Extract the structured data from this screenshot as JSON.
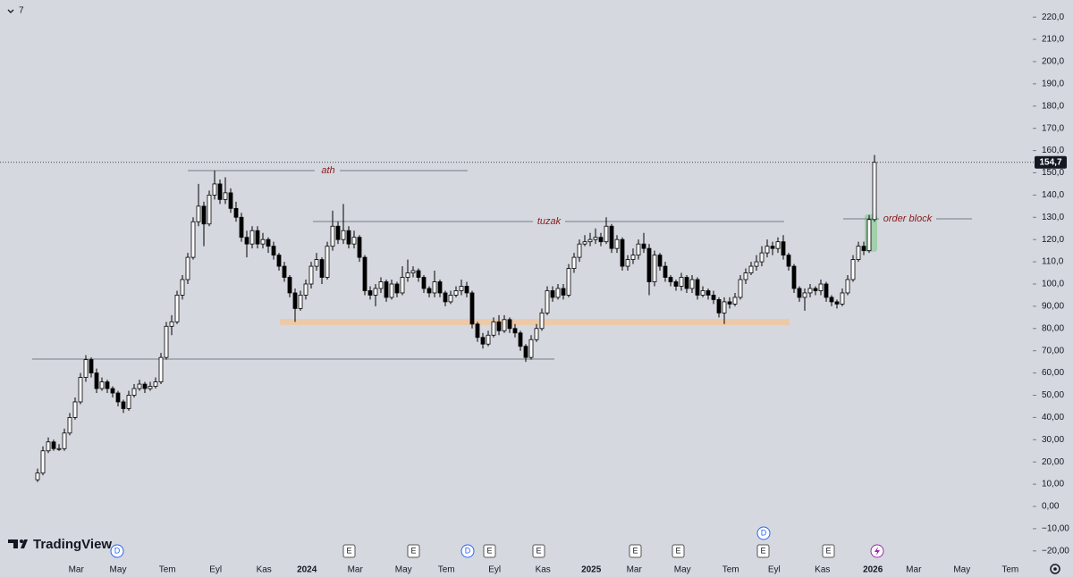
{
  "chart_data": {
    "type": "candlestick",
    "header": {
      "interval": "7"
    },
    "brand": "TradingView",
    "up_color": "#ffffff",
    "down_color": "#000000",
    "wick_color": "#000000",
    "ylim": [
      -25.3,
      227.7
    ],
    "yticks": [
      {
        "value": -20,
        "label": "−20,00"
      },
      {
        "value": -10,
        "label": "−10,00"
      },
      {
        "value": 0,
        "label": "0,00"
      },
      {
        "value": 10,
        "label": "10,00"
      },
      {
        "value": 20,
        "label": "20,00"
      },
      {
        "value": 30,
        "label": "30,00"
      },
      {
        "value": 40,
        "label": "40,00"
      },
      {
        "value": 50,
        "label": "50,00"
      },
      {
        "value": 60,
        "label": "60,00"
      },
      {
        "value": 70,
        "label": "70,00"
      },
      {
        "value": 80,
        "label": "80,00"
      },
      {
        "value": 90,
        "label": "90,00"
      },
      {
        "value": 100,
        "label": "100,0"
      },
      {
        "value": 110,
        "label": "110,0"
      },
      {
        "value": 120,
        "label": "120,0"
      },
      {
        "value": 130,
        "label": "130,0"
      },
      {
        "value": 140,
        "label": "140,0"
      },
      {
        "value": 150,
        "label": "150,0"
      },
      {
        "value": 160,
        "label": "160,0"
      },
      {
        "value": 170,
        "label": "170,0"
      },
      {
        "value": 180,
        "label": "180,0"
      },
      {
        "value": 190,
        "label": "190,0"
      },
      {
        "value": 200,
        "label": "200,0"
      },
      {
        "value": 210,
        "label": "210,0"
      },
      {
        "value": 220,
        "label": "220,0"
      }
    ],
    "xticks": [
      {
        "value": 7.2,
        "label": "Mar"
      },
      {
        "value": 15,
        "label": "May"
      },
      {
        "value": 24.2,
        "label": "Tem"
      },
      {
        "value": 33.2,
        "label": "Eyl"
      },
      {
        "value": 42.2,
        "label": "Kas"
      },
      {
        "value": 50.2,
        "label": "2024"
      },
      {
        "value": 59.2,
        "label": "Mar"
      },
      {
        "value": 68.2,
        "label": "May"
      },
      {
        "value": 76.2,
        "label": "Tem"
      },
      {
        "value": 85.2,
        "label": "Eyl"
      },
      {
        "value": 94.2,
        "label": "Kas"
      },
      {
        "value": 103.2,
        "label": "2025"
      },
      {
        "value": 111.2,
        "label": "Mar"
      },
      {
        "value": 120.2,
        "label": "May"
      },
      {
        "value": 129.2,
        "label": "Tem"
      },
      {
        "value": 137.3,
        "label": "Eyl"
      },
      {
        "value": 146.3,
        "label": "Kas"
      },
      {
        "value": 155.7,
        "label": "2026"
      },
      {
        "value": 163.3,
        "label": "Mar"
      },
      {
        "value": 172.3,
        "label": "May"
      },
      {
        "value": 181.3,
        "label": "Tem"
      }
    ],
    "last_price_label": "154,7",
    "annotations": {
      "ath": "ath",
      "tuzak": "tuzak",
      "order_block": "order block"
    },
    "events": [
      "D",
      "E",
      "E",
      "D",
      "E",
      "E",
      "E",
      "E",
      "E",
      "D",
      "E"
    ],
    "candles": [
      [
        12,
        17,
        11,
        15
      ],
      [
        15,
        27,
        14,
        25
      ],
      [
        25,
        31,
        24,
        29
      ],
      [
        29,
        30,
        25,
        26
      ],
      [
        26,
        28,
        25,
        26
      ],
      [
        26,
        35,
        25,
        33
      ],
      [
        33,
        42,
        32,
        40
      ],
      [
        40,
        49,
        39,
        47
      ],
      [
        47,
        60,
        46,
        58
      ],
      [
        58,
        68,
        56,
        66
      ],
      [
        66,
        67,
        58,
        60
      ],
      [
        60,
        62,
        51,
        53
      ],
      [
        53,
        58,
        52,
        56
      ],
      [
        56,
        57,
        51,
        53
      ],
      [
        53,
        54,
        49,
        51
      ],
      [
        51,
        52,
        45,
        47
      ],
      [
        47,
        48,
        42,
        44
      ],
      [
        44,
        52,
        43,
        50
      ],
      [
        50,
        55,
        49,
        53
      ],
      [
        53,
        57,
        52,
        55
      ],
      [
        55,
        56,
        51,
        53
      ],
      [
        53,
        56,
        52,
        54
      ],
      [
        54,
        58,
        53,
        56
      ],
      [
        56,
        69,
        55,
        67
      ],
      [
        67,
        83,
        66,
        81
      ],
      [
        81,
        86,
        77,
        83
      ],
      [
        83,
        97,
        82,
        95
      ],
      [
        95,
        104,
        93,
        102
      ],
      [
        102,
        114,
        100,
        112
      ],
      [
        112,
        130,
        111,
        128
      ],
      [
        128,
        145,
        126,
        135
      ],
      [
        135,
        137,
        117,
        127
      ],
      [
        127,
        142,
        126,
        140
      ],
      [
        140,
        151,
        138,
        145
      ],
      [
        145,
        147,
        136,
        138
      ],
      [
        138,
        148,
        136,
        141
      ],
      [
        141,
        143,
        132,
        134
      ],
      [
        134,
        137,
        128,
        130
      ],
      [
        130,
        132,
        119,
        121
      ],
      [
        121,
        124,
        112,
        118
      ],
      [
        118,
        126,
        116,
        124
      ],
      [
        124,
        126,
        116,
        118
      ],
      [
        118,
        123,
        116,
        120
      ],
      [
        120,
        121,
        114,
        117
      ],
      [
        117,
        119,
        111,
        113
      ],
      [
        113,
        114,
        106,
        108
      ],
      [
        108,
        110,
        101,
        103
      ],
      [
        103,
        104,
        94,
        96
      ],
      [
        96,
        98,
        83,
        89
      ],
      [
        89,
        97,
        88,
        95
      ],
      [
        95,
        102,
        93,
        100
      ],
      [
        100,
        110,
        98,
        108
      ],
      [
        108,
        114,
        106,
        111
      ],
      [
        111,
        112,
        100,
        103
      ],
      [
        103,
        119,
        102,
        117
      ],
      [
        117,
        133,
        115,
        126
      ],
      [
        126,
        128,
        118,
        120
      ],
      [
        120,
        136,
        118,
        124
      ],
      [
        124,
        126,
        116,
        118
      ],
      [
        118,
        124,
        116,
        121
      ],
      [
        121,
        122,
        110,
        112
      ],
      [
        112,
        113,
        95,
        97
      ],
      [
        97,
        99,
        93,
        95
      ],
      [
        95,
        100,
        90,
        98
      ],
      [
        98,
        103,
        96,
        101
      ],
      [
        101,
        102,
        92,
        94
      ],
      [
        94,
        102,
        93,
        100
      ],
      [
        100,
        101,
        94,
        96
      ],
      [
        96,
        108,
        95,
        103
      ],
      [
        103,
        111,
        101,
        105
      ],
      [
        105,
        108,
        103,
        106
      ],
      [
        106,
        107,
        101,
        103
      ],
      [
        103,
        104,
        96,
        98
      ],
      [
        98,
        99,
        94,
        96
      ],
      [
        96,
        106,
        94,
        101
      ],
      [
        101,
        102,
        94,
        96
      ],
      [
        96,
        97,
        90,
        92
      ],
      [
        92,
        97,
        91,
        95
      ],
      [
        95,
        99,
        94,
        97
      ],
      [
        97,
        102,
        95,
        99
      ],
      [
        99,
        101,
        94,
        96
      ],
      [
        96,
        97,
        80,
        82
      ],
      [
        82,
        83,
        74,
        76
      ],
      [
        76,
        78,
        71,
        73
      ],
      [
        73,
        79,
        72,
        77
      ],
      [
        77,
        85,
        76,
        83
      ],
      [
        83,
        86,
        77,
        79
      ],
      [
        79,
        86,
        78,
        84
      ],
      [
        84,
        85,
        78,
        80
      ],
      [
        80,
        82,
        76,
        78
      ],
      [
        78,
        79,
        70,
        72
      ],
      [
        72,
        73,
        65,
        67
      ],
      [
        67,
        77,
        66,
        75
      ],
      [
        75,
        82,
        74,
        80
      ],
      [
        80,
        89,
        79,
        87
      ],
      [
        87,
        99,
        86,
        97
      ],
      [
        97,
        99,
        92,
        94
      ],
      [
        94,
        100,
        93,
        98
      ],
      [
        98,
        100,
        93,
        95
      ],
      [
        95,
        109,
        94,
        107
      ],
      [
        107,
        114,
        105,
        112
      ],
      [
        112,
        120,
        110,
        118
      ],
      [
        118,
        122,
        117,
        119
      ],
      [
        119,
        123,
        117,
        120
      ],
      [
        120,
        125,
        118,
        121
      ],
      [
        121,
        123,
        117,
        119
      ],
      [
        119,
        130,
        118,
        126
      ],
      [
        126,
        127,
        114,
        116
      ],
      [
        116,
        122,
        114,
        120
      ],
      [
        120,
        121,
        106,
        108
      ],
      [
        108,
        113,
        106,
        111
      ],
      [
        111,
        116,
        109,
        113
      ],
      [
        113,
        120,
        111,
        118
      ],
      [
        118,
        123,
        114,
        116
      ],
      [
        116,
        118,
        95,
        101
      ],
      [
        101,
        115,
        99,
        113
      ],
      [
        113,
        114,
        106,
        108
      ],
      [
        108,
        110,
        101,
        103
      ],
      [
        103,
        104,
        99,
        101
      ],
      [
        101,
        102,
        97,
        99
      ],
      [
        99,
        105,
        97,
        103
      ],
      [
        103,
        104,
        96,
        98
      ],
      [
        98,
        104,
        96,
        102
      ],
      [
        102,
        103,
        93,
        95
      ],
      [
        95,
        99,
        94,
        97
      ],
      [
        97,
        98,
        93,
        95
      ],
      [
        95,
        97,
        91,
        93
      ],
      [
        93,
        94,
        85,
        87
      ],
      [
        87,
        94,
        82,
        92
      ],
      [
        92,
        94,
        89,
        91
      ],
      [
        91,
        96,
        90,
        94
      ],
      [
        94,
        104,
        93,
        102
      ],
      [
        102,
        107,
        100,
        105
      ],
      [
        105,
        110,
        104,
        108
      ],
      [
        108,
        113,
        106,
        110
      ],
      [
        110,
        117,
        108,
        114
      ],
      [
        114,
        120,
        112,
        117
      ],
      [
        117,
        119,
        113,
        116
      ],
      [
        116,
        121,
        114,
        119
      ],
      [
        119,
        122,
        111,
        113
      ],
      [
        113,
        114,
        106,
        108
      ],
      [
        108,
        109,
        96,
        98
      ],
      [
        98,
        99,
        92,
        94
      ],
      [
        94,
        98,
        88,
        96
      ],
      [
        96,
        100,
        94,
        98
      ],
      [
        98,
        99,
        95,
        97
      ],
      [
        97,
        102,
        95,
        100
      ],
      [
        100,
        101,
        92,
        94
      ],
      [
        94,
        95,
        90,
        92
      ],
      [
        92,
        93,
        89,
        91
      ],
      [
        91,
        98,
        90,
        96
      ],
      [
        96,
        104,
        95,
        102
      ],
      [
        102,
        113,
        101,
        111
      ],
      [
        111,
        119,
        110,
        117
      ],
      [
        117,
        119,
        113,
        115
      ],
      [
        115,
        131,
        114,
        129
      ],
      [
        129,
        158,
        128,
        154.7
      ]
    ]
  }
}
